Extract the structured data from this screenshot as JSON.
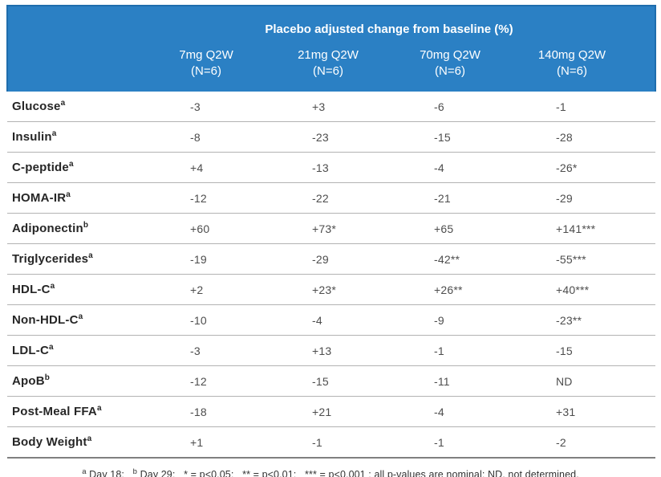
{
  "chart_data": {
    "type": "table",
    "title": "Placebo adjusted change from baseline (%)",
    "doses": [
      {
        "dose": "7mg Q2W",
        "n": "(N=6)"
      },
      {
        "dose": "21mg Q2W",
        "n": "(N=6)"
      },
      {
        "dose": "70mg Q2W",
        "n": "(N=6)"
      },
      {
        "dose": "140mg Q2W",
        "n": "(N=6)"
      }
    ],
    "rows": [
      {
        "label": "Glucose",
        "sup": "a",
        "values": [
          "-3",
          "+3",
          "-6",
          "-1"
        ]
      },
      {
        "label": "Insulin",
        "sup": "a",
        "values": [
          "-8",
          "-23",
          "-15",
          "-28"
        ]
      },
      {
        "label": "C-peptide",
        "sup": "a",
        "values": [
          "+4",
          "-13",
          "-4",
          "-26*"
        ]
      },
      {
        "label": "HOMA-IR",
        "sup": "a",
        "values": [
          "-12",
          "-22",
          "-21",
          "-29"
        ]
      },
      {
        "label": "Adiponectin",
        "sup": "b",
        "values": [
          "+60",
          "+73*",
          "+65",
          "+141***"
        ]
      },
      {
        "label": "Triglycerides",
        "sup": "a",
        "values": [
          "-19",
          "-29",
          "-42**",
          "-55***"
        ]
      },
      {
        "label": "HDL-C",
        "sup": "a",
        "values": [
          "+2",
          "+23*",
          "+26**",
          "+40***"
        ]
      },
      {
        "label": "Non-HDL-C",
        "sup": "a",
        "values": [
          "-10",
          "-4",
          "-9",
          "-23**"
        ]
      },
      {
        "label": "LDL-C",
        "sup": "a",
        "values": [
          "-3",
          "+13",
          "-1",
          "-15"
        ]
      },
      {
        "label": "ApoB",
        "sup": "b",
        "values": [
          "-12",
          "-15",
          "-11",
          "ND"
        ]
      },
      {
        "label": "Post-Meal FFA",
        "sup": "a",
        "values": [
          "-18",
          "+21",
          "-4",
          "+31"
        ]
      },
      {
        "label": "Body Weight",
        "sup": "a",
        "values": [
          "+1",
          "-1",
          "-1",
          "-2"
        ]
      }
    ],
    "footnote_parts": [
      {
        "sup": "a"
      },
      {
        "text": " Day 18;   "
      },
      {
        "sup": "b"
      },
      {
        "text": " Day 29;   * = p<0.05;   ** = p<0.01;   *** = p<0.001 ; all p-values are nominal; ND, not determined."
      }
    ],
    "colors": {
      "header_bg": "#2b80c4",
      "header_border": "#1e6dad",
      "header_text": "#ffffff",
      "row_separator": "#b3b3b3",
      "table_bottom_border": "#808080",
      "label_text": "#262626",
      "value_text": "#4d4d4d"
    },
    "layout": {
      "legend": "none",
      "grid": "horizontal-row-separators"
    }
  }
}
